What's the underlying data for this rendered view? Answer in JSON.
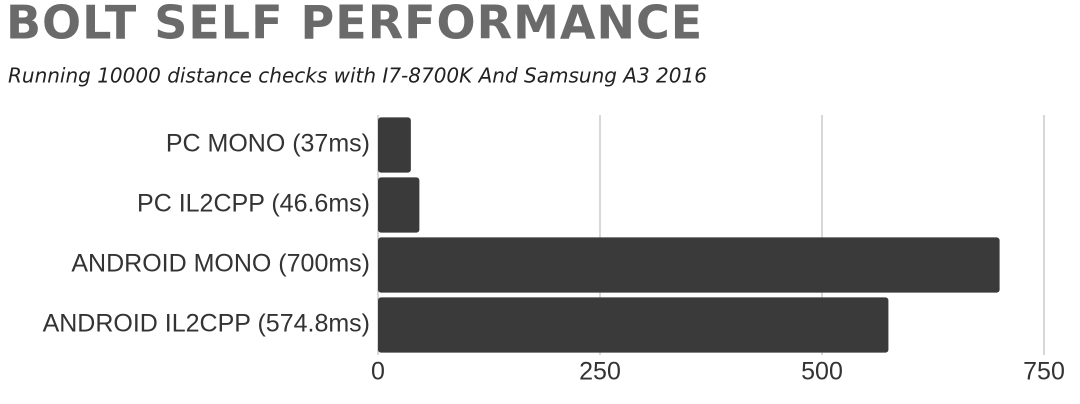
{
  "chart_data": {
    "type": "bar",
    "orientation": "horizontal",
    "title": "BOLT SELF PERFORMANCE",
    "subtitle": "Running 10000 distance checks with I7-8700K And Samsung A3 2016",
    "categories": [
      "PC MONO (37ms)",
      "PC IL2CPP (46.6ms)",
      "ANDROID MONO (700ms)",
      "ANDROID IL2CPP (574.8ms)"
    ],
    "values": [
      37,
      46.6,
      700,
      574.8
    ],
    "color": "#3a3a3a",
    "xlim": [
      0,
      750
    ],
    "xticks": [
      0,
      250,
      500,
      750
    ],
    "grid": true
  }
}
